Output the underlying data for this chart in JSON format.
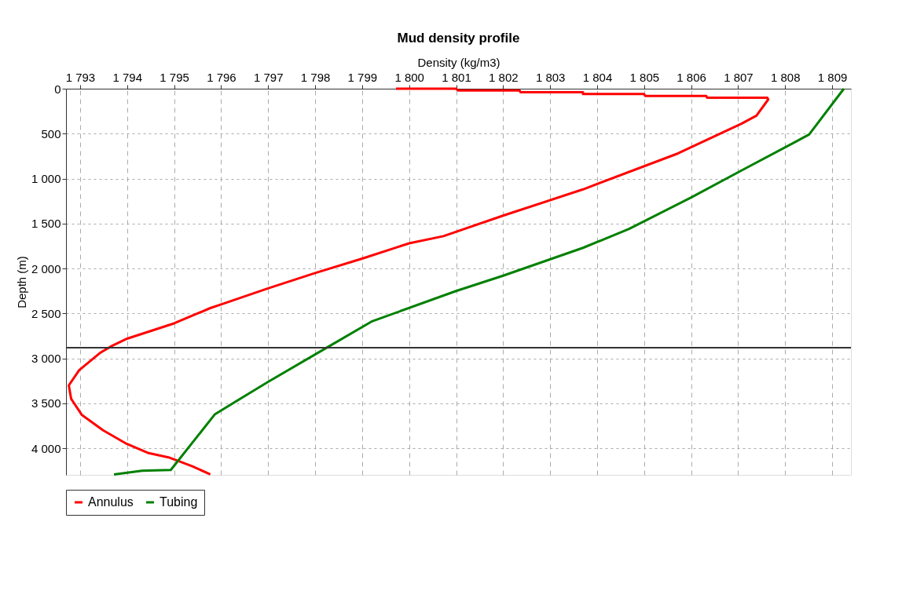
{
  "chart_data": {
    "type": "line",
    "title": "Mud density profile",
    "xlabel": "Density (kg/m3)",
    "ylabel": "Depth (m)",
    "xlim": [
      1792.7,
      1809.4
    ],
    "xticks": [
      {
        "value": 1793,
        "label": "1 793"
      },
      {
        "value": 1794,
        "label": "1 794"
      },
      {
        "value": 1795,
        "label": "1 795"
      },
      {
        "value": 1796,
        "label": "1 796"
      },
      {
        "value": 1797,
        "label": "1 797"
      },
      {
        "value": 1798,
        "label": "1 798"
      },
      {
        "value": 1799,
        "label": "1 799"
      },
      {
        "value": 1800,
        "label": "1 800"
      },
      {
        "value": 1801,
        "label": "1 801"
      },
      {
        "value": 1802,
        "label": "1 802"
      },
      {
        "value": 1803,
        "label": "1 803"
      },
      {
        "value": 1804,
        "label": "1 804"
      },
      {
        "value": 1805,
        "label": "1 805"
      },
      {
        "value": 1806,
        "label": "1 806"
      },
      {
        "value": 1807,
        "label": "1 807"
      },
      {
        "value": 1808,
        "label": "1 808"
      },
      {
        "value": 1809,
        "label": "1 809"
      }
    ],
    "ylim": [
      4295,
      0
    ],
    "yticks": [
      0,
      500,
      {
        "value": 1000,
        "label": "1 000"
      },
      {
        "value": 1500,
        "label": "1 500"
      },
      {
        "value": 2000,
        "label": "2 000"
      },
      {
        "value": 2500,
        "label": "2 500"
      },
      {
        "value": 3000,
        "label": "3 000"
      },
      {
        "value": 3500,
        "label": "3 500"
      },
      {
        "value": 4000,
        "label": "4 000"
      }
    ],
    "grid": true,
    "legend": "bottom",
    "marker": "none",
    "line_style": "solid",
    "ref_lines": [
      {
        "axis": "y",
        "value": 2880,
        "color": "#333333"
      }
    ],
    "series": [
      {
        "name": "Annulus",
        "color": "#ff0000",
        "x": [
          1799.72,
          1801.0,
          1801.04,
          1802.35,
          1802.37,
          1803.7,
          1803.7,
          1805.0,
          1805.02,
          1806.32,
          1806.34,
          1807.62,
          1807.64,
          1807.39,
          1807.07,
          1805.72,
          1803.7,
          1802.01,
          1800.73,
          1800.0,
          1799.0,
          1798.0,
          1797.0,
          1796.0,
          1795.77,
          1795.0,
          1794.0,
          1793.68,
          1793.42,
          1792.98,
          1792.76,
          1792.81,
          1793.04,
          1793.49,
          1793.99,
          1794.44,
          1794.88,
          1795.39,
          1795.77
        ],
        "values": [
          0,
          0,
          20,
          20,
          40,
          40,
          60,
          60,
          80,
          80,
          100,
          100,
          120,
          300,
          390,
          720,
          1120,
          1410,
          1640,
          1720,
          1890,
          2050,
          2220,
          2400,
          2440,
          2610,
          2780,
          2860,
          2940,
          3130,
          3300,
          3450,
          3630,
          3800,
          3950,
          4050,
          4100,
          4200,
          4290
        ]
      },
      {
        "name": "Tubing",
        "color": "#008000",
        "x": [
          1809.25,
          1808.51,
          1807.0,
          1806.0,
          1804.68,
          1803.7,
          1802.0,
          1801.0,
          1799.2,
          1798.25,
          1797.0,
          1795.87,
          1794.93,
          1794.32,
          1793.72
        ],
        "values": [
          0,
          510,
          930,
          1210,
          1560,
          1770,
          2080,
          2250,
          2590,
          2880,
          3260,
          3620,
          4240,
          4250,
          4290
        ]
      }
    ]
  }
}
